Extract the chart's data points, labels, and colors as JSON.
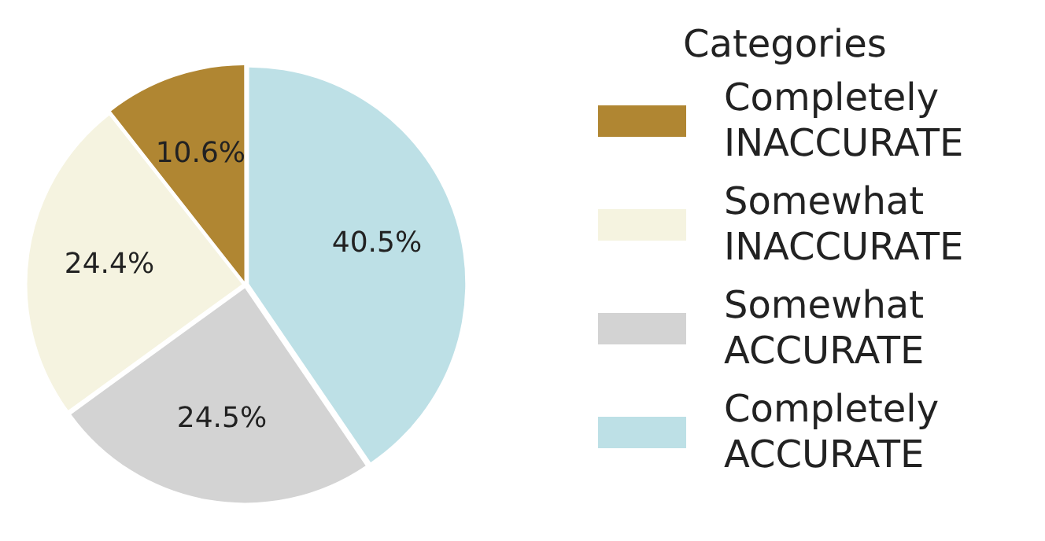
{
  "chart_data": {
    "type": "pie",
    "legend_title": "Categories",
    "legend": "right",
    "categories": [
      "Completely INACCURATE",
      "Somewhat INACCURATE",
      "Somewhat ACCURATE",
      "Completely ACCURATE"
    ],
    "values": [
      10.6,
      24.4,
      24.5,
      40.5
    ],
    "colors": [
      "#b08632",
      "#f5f3e0",
      "#d3d3d3",
      "#bde0e6"
    ],
    "value_labels": [
      "10.6%",
      "24.4%",
      "24.5%",
      "40.5%"
    ]
  }
}
